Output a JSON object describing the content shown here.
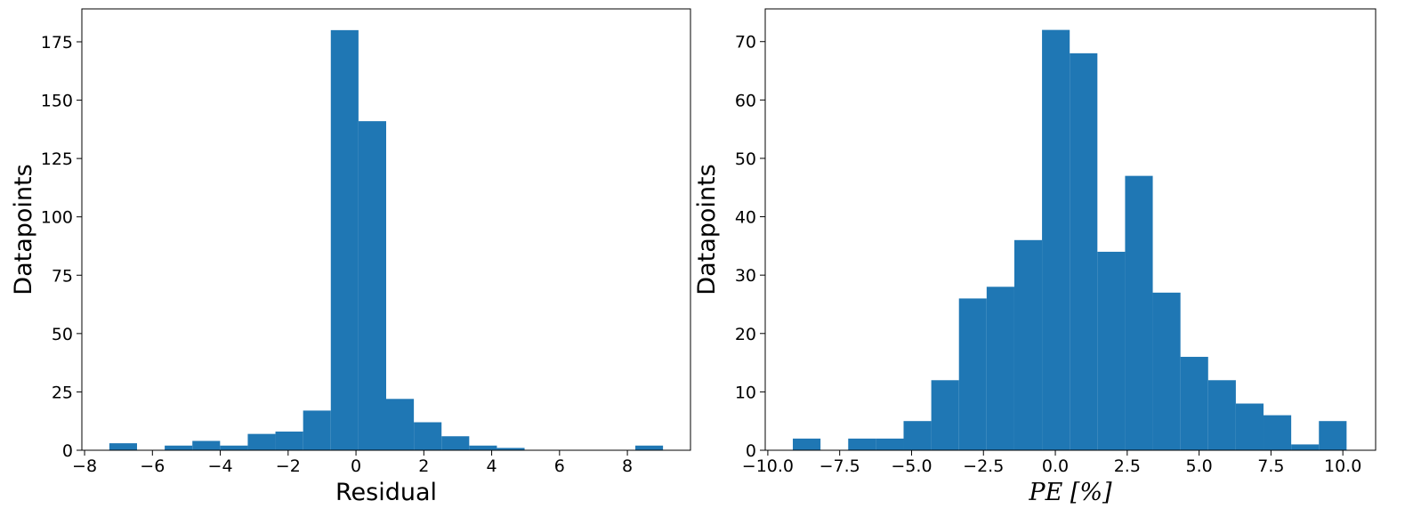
{
  "chart_data": [
    {
      "type": "histogram",
      "color": "#1f77b4",
      "bins": [
        -7.27,
        -6.454,
        -5.638,
        -4.822,
        -4.006,
        -3.19,
        -2.374,
        -1.558,
        -0.742,
        0.074,
        0.89,
        1.706,
        2.522,
        3.338,
        4.154,
        4.97,
        5.786,
        6.602,
        7.418,
        8.234,
        9.05
      ],
      "values": [
        3,
        0,
        2,
        4,
        2,
        7,
        8,
        17,
        180,
        141,
        22,
        12,
        6,
        2,
        1,
        0,
        0,
        0,
        0,
        2
      ],
      "xlim": [
        -8.08,
        9.86
      ],
      "ylim": [
        0,
        189.1
      ],
      "xticks": [
        {
          "value": -8,
          "label": "−8"
        },
        {
          "value": -6,
          "label": "−6"
        },
        {
          "value": -4,
          "label": "−4"
        },
        {
          "value": -2,
          "label": "−2"
        },
        0,
        2,
        4,
        6,
        8
      ],
      "yticks": [
        0,
        25,
        50,
        75,
        100,
        125,
        150,
        175
      ],
      "x_label": "Residual",
      "y_label": "Datapoints"
    },
    {
      "type": "histogram",
      "color": "#1f77b4",
      "bins": [
        -9.13,
        -8.167,
        -7.204,
        -6.241,
        -5.278,
        -4.315,
        -3.352,
        -2.389,
        -1.426,
        -0.463,
        0.5,
        1.463,
        2.426,
        3.389,
        4.352,
        5.315,
        6.278,
        7.241,
        8.204,
        9.167,
        10.13
      ],
      "values": [
        2,
        0,
        2,
        2,
        5,
        12,
        26,
        28,
        36,
        72,
        68,
        34,
        47,
        27,
        16,
        12,
        8,
        6,
        1,
        5
      ],
      "xlim": [
        -10.09,
        11.14
      ],
      "ylim": [
        0,
        75.6
      ],
      "xticks": [
        {
          "value": -10,
          "label": "−10.0"
        },
        {
          "value": -7.5,
          "label": "−7.5"
        },
        {
          "value": -5,
          "label": "−5.0"
        },
        {
          "value": -2.5,
          "label": "−2.5"
        },
        {
          "value": 0,
          "label": "0.0"
        },
        2.5,
        {
          "value": 5,
          "label": "5.0"
        },
        7.5,
        {
          "value": 10,
          "label": "10.0"
        }
      ],
      "yticks": [
        0,
        10,
        20,
        30,
        40,
        50,
        60,
        70
      ],
      "x_label": "PE [%]",
      "y_label": "Datapoints"
    }
  ]
}
